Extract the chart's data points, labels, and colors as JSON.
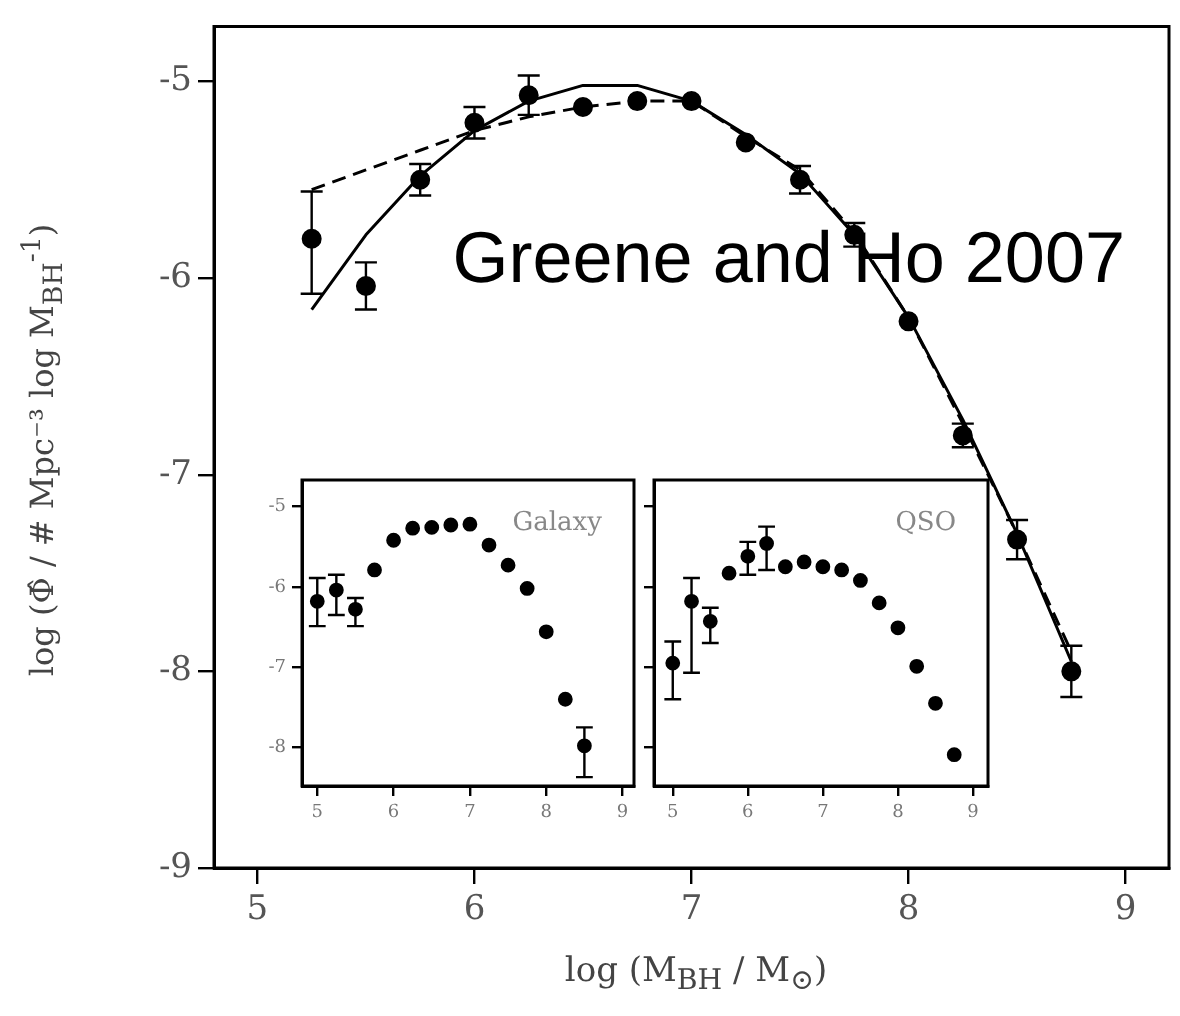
{
  "chart_data": [
    {
      "type": "scatter",
      "xlabel": "log (M$_{BH}$ / M$_{⊙}$)",
      "ylabel": "log (Φ̂ / # Mpc⁻³ log M$_{BH}$$^{-1}$)",
      "annotations": [
        "Greene and Ho 2007"
      ],
      "xlim": [
        4.8,
        9.2
      ],
      "ylim": [
        -9,
        -4.72
      ],
      "xticks": [
        5,
        6,
        7,
        8,
        9
      ],
      "yticks": [
        -9,
        -8,
        -7,
        -6,
        -5
      ],
      "marker": "circle",
      "x": [
        5.25,
        5.5,
        5.75,
        6.0,
        6.25,
        6.5,
        6.75,
        7.0,
        7.25,
        7.5,
        7.75,
        8.0,
        8.25,
        8.5,
        8.75
      ],
      "series": [
        {
          "color": "#000000",
          "values": [
            -5.8,
            -6.04,
            -5.5,
            -5.21,
            -5.07,
            -5.13,
            -5.1,
            -5.1,
            -5.31,
            -5.5,
            -5.78,
            -6.22,
            -6.8,
            -7.33,
            -8.0
          ],
          "errors": [
            [
              -6.08,
              -5.56
            ],
            0.12,
            0.08,
            0.08,
            0.1,
            null,
            null,
            null,
            null,
            0.07,
            0.06,
            null,
            0.06,
            0.1,
            0.13
          ]
        },
        {
          "type": "line",
          "line_style": "solid",
          "marker": "none",
          "color": "#000000",
          "x": [
            5.25,
            5.5,
            5.75,
            6.0,
            6.25,
            6.5,
            6.75,
            7.0,
            7.25,
            7.5,
            7.75,
            8.0,
            8.25,
            8.5,
            8.75
          ],
          "values": [
            -6.16,
            -5.78,
            -5.48,
            -5.25,
            -5.1,
            -5.02,
            -5.02,
            -5.1,
            -5.27,
            -5.47,
            -5.78,
            -6.2,
            -6.72,
            -7.3,
            -7.95
          ]
        },
        {
          "type": "line",
          "line_style": "dashed",
          "marker": "none",
          "color": "#000000",
          "x": [
            5.25,
            5.5,
            5.75,
            6.0,
            6.25,
            6.5,
            6.75,
            7.0,
            7.25,
            7.5,
            7.75,
            8.0,
            8.25,
            8.5,
            8.75
          ],
          "values": [
            -5.55,
            -5.45,
            -5.35,
            -5.25,
            -5.18,
            -5.13,
            -5.1,
            -5.1,
            -5.28,
            -5.45,
            -5.77,
            -6.2,
            -6.74,
            -7.3,
            -7.9
          ]
        }
      ]
    },
    {
      "type": "scatter",
      "title": "Galaxy",
      "xlim": [
        4.8,
        9.15
      ],
      "ylim": [
        -8.48,
        -4.67
      ],
      "xticks": [
        5,
        6,
        7,
        8,
        9
      ],
      "yticks": [
        -8,
        -7,
        -6,
        -5
      ],
      "marker": "circle",
      "x": [
        5.0,
        5.25,
        5.5,
        5.75,
        6.0,
        6.25,
        6.5,
        6.75,
        7.0,
        7.25,
        7.5,
        7.75,
        8.0,
        8.25,
        8.5
      ],
      "series": [
        {
          "color": "#000000",
          "values": [
            -6.18,
            -6.04,
            -6.28,
            -5.79,
            -5.42,
            -5.27,
            -5.26,
            -5.23,
            -5.22,
            -5.48,
            -5.73,
            -6.02,
            -6.56,
            -7.4,
            -7.98
          ],
          "errors": [
            [
              -6.49,
              -5.89
            ],
            [
              -6.35,
              -5.85
            ],
            [
              -6.49,
              -6.14
            ],
            null,
            null,
            null,
            null,
            null,
            null,
            null,
            null,
            null,
            null,
            null,
            [
              -8.37,
              -7.75
            ]
          ]
        }
      ]
    },
    {
      "type": "scatter",
      "title": "QSO",
      "tick_labels": "x",
      "xlim": [
        4.75,
        9.2
      ],
      "ylim": [
        -8.48,
        -4.67
      ],
      "xticks": [
        5,
        6,
        7,
        8,
        9
      ],
      "yticks": [
        -8,
        -7,
        -6,
        -5
      ],
      "marker": "circle",
      "x": [
        5.0,
        5.25,
        5.5,
        5.75,
        6.0,
        6.25,
        6.5,
        6.75,
        7.0,
        7.25,
        7.5,
        7.75,
        8.0,
        8.25,
        8.5,
        8.75
      ],
      "series": [
        {
          "color": "#000000",
          "values": [
            -6.95,
            -6.18,
            -6.43,
            -5.83,
            -5.62,
            -5.46,
            -5.75,
            -5.69,
            -5.75,
            -5.79,
            -5.92,
            -6.2,
            -6.51,
            -6.99,
            -7.45,
            -8.09
          ],
          "errors": [
            [
              -7.4,
              -6.68
            ],
            [
              -7.07,
              -5.89
            ],
            [
              -6.7,
              -6.26
            ],
            null,
            [
              -5.85,
              -5.44
            ],
            [
              -5.79,
              -5.25
            ],
            null,
            null,
            null,
            null,
            null,
            null,
            null,
            null,
            null,
            null
          ]
        }
      ]
    }
  ]
}
